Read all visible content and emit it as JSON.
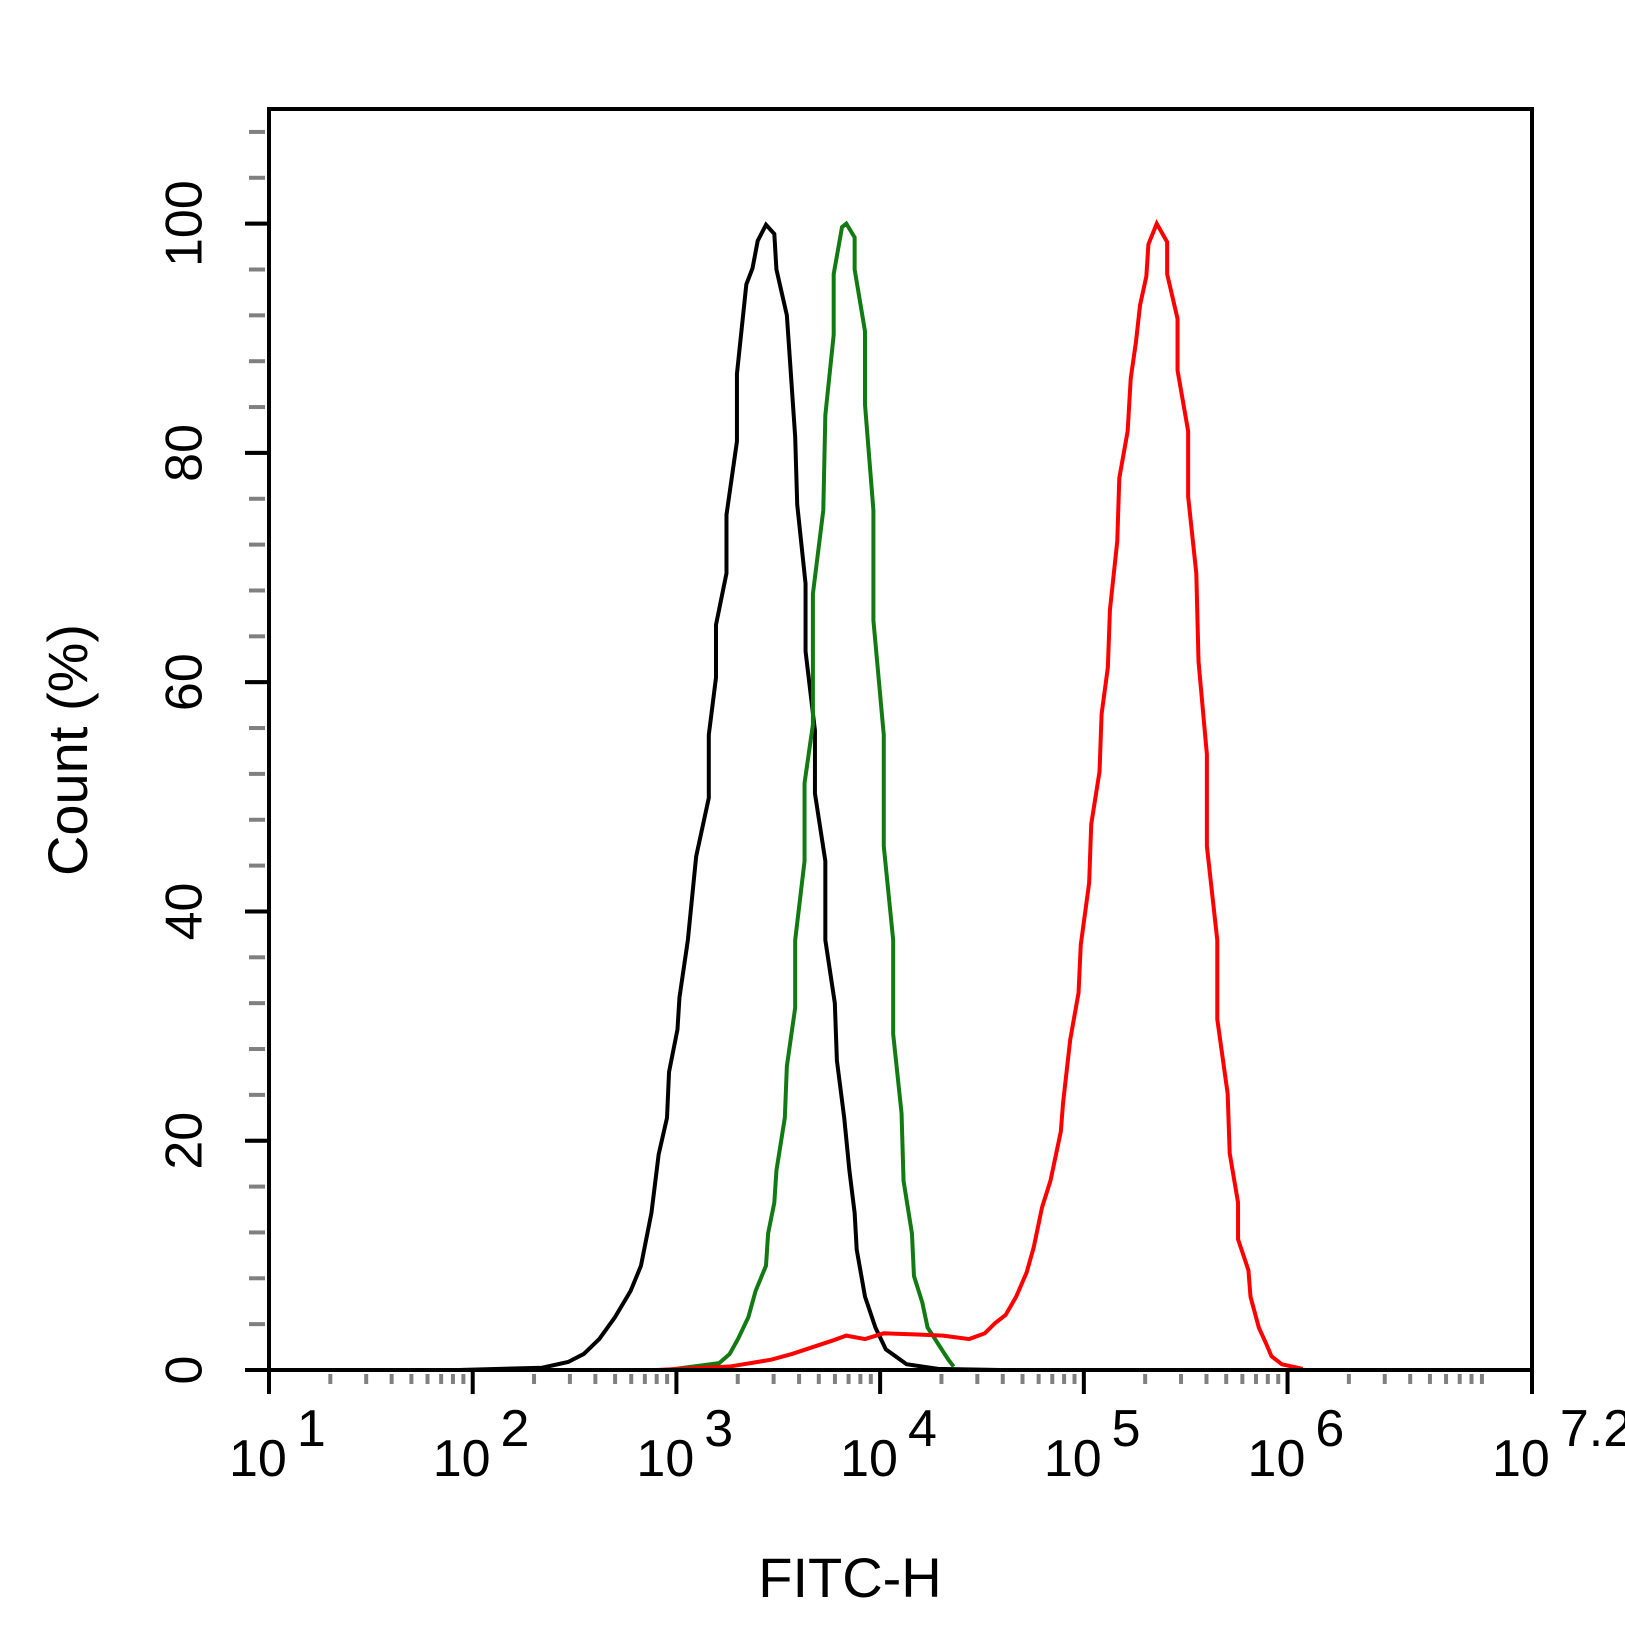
{
  "chart_data": {
    "type": "line",
    "x_label": "FITC-H",
    "y_label": "Count (%)",
    "xscale": "log",
    "xlim": [
      10,
      15848931.9
    ],
    "xticks": [
      {
        "value": 10,
        "label": "10",
        "power": "1"
      },
      {
        "value": 100,
        "label": "10",
        "power": "2"
      },
      {
        "value": 1000,
        "label": "10",
        "power": "3"
      },
      {
        "value": 10000,
        "label": "10",
        "power": "4"
      },
      {
        "value": 100000,
        "label": "10",
        "power": "5"
      },
      {
        "value": 1000000,
        "label": "10",
        "power": "6"
      },
      {
        "value": 15848931.9,
        "label": "10",
        "power": "7.2"
      }
    ],
    "ylim": [
      0,
      110
    ],
    "yticks": [
      0,
      20,
      40,
      60,
      80,
      100
    ],
    "series": [
      {
        "color": "#000000",
        "x": [
          85.3,
          219,
          294,
          351,
          418,
          499,
          596,
          670,
          754,
          818,
          899,
          920,
          1012,
          1035,
          1138,
          1250,
          1442,
          1442,
          1564,
          1564,
          1761,
          1761,
          1982,
          1982,
          2204,
          2363,
          2506,
          2753,
          3024,
          3097,
          3485,
          3828,
          3917,
          4304,
          4304,
          4786,
          4786,
          5383,
          5383,
          5993,
          6134,
          6664,
          7066,
          7497,
          7674,
          8429,
          9484,
          10670,
          13490,
          19230,
          38990
        ],
        "values": [
          0,
          0.2,
          0.7,
          1.4,
          2.7,
          4.6,
          6.9,
          9.1,
          13.7,
          18.8,
          22,
          26,
          29.7,
          32.5,
          37.5,
          44.8,
          49.9,
          55.4,
          60.4,
          65,
          69.5,
          74.6,
          81,
          86.9,
          94.7,
          96.1,
          98.5,
          99.9,
          99.1,
          96,
          92,
          81.4,
          75.5,
          68.6,
          62.7,
          55.8,
          50.3,
          44.4,
          37.5,
          32,
          27,
          22,
          17.4,
          13.7,
          10.5,
          6.4,
          3.7,
          1.8,
          0.5,
          0.1,
          0
        ]
      },
      {
        "color": "#127a12",
        "x": [
          899,
          1622,
          1825,
          2005,
          2254,
          2448,
          2753,
          2818,
          3024,
          3097,
          3405,
          3485,
          3828,
          3828,
          4256,
          4256,
          4677,
          4677,
          5260,
          5383,
          5916,
          5916,
          6501,
          6823,
          7497,
          7497,
          8429,
          8429,
          9268,
          9268,
          10420,
          10420,
          11590,
          11590,
          12740,
          13030,
          14330,
          14660,
          16100,
          17100,
          19230,
          21630,
          22960
        ],
        "values": [
          0,
          0.6,
          1.4,
          2.7,
          4.6,
          6.9,
          9.1,
          11.9,
          14.6,
          17.4,
          22,
          26.5,
          31.6,
          37.5,
          44.4,
          51.2,
          56.3,
          67.7,
          75,
          83.3,
          90.3,
          95.6,
          99.7,
          100,
          98.8,
          96,
          90.6,
          84.2,
          75,
          65.4,
          55.4,
          45.7,
          37.5,
          29.3,
          22.4,
          16.5,
          11.9,
          8.2,
          5.9,
          3.7,
          2.3,
          0.9,
          0.3
        ]
      },
      {
        "color": "#ff0000",
        "x": [
          800,
          1825,
          2919,
          3698,
          4677,
          5916,
          6823,
          8429,
          10420,
          15210,
          20380,
          27350,
          32650,
          36730,
          41310,
          46550,
          52360,
          56750,
          62370,
          68550,
          77090,
          79070,
          85700,
          94190,
          96600,
          106200,
          108700,
          119400,
          122200,
          131200,
          134300,
          145900,
          149300,
          164100,
          169900,
          180300,
          188800,
          202700,
          207500,
          228000,
          256400,
          256400,
          288400,
          288400,
          325100,
          325100,
          356500,
          365600,
          401800,
          401800,
          451900,
          451900,
          508200,
          520000,
          571500,
          571500,
          642700,
          657700,
          722800,
          785200,
          833700,
          937600,
          1186000
        ],
        "values": [
          0,
          0.3,
          0.9,
          1.4,
          2,
          2.6,
          3,
          2.7,
          3.2,
          3.1,
          3,
          2.7,
          3.2,
          4.1,
          4.8,
          6.4,
          8.5,
          10.7,
          14.2,
          16.5,
          20.8,
          23.3,
          28.8,
          32.9,
          37.1,
          42.5,
          47.6,
          52.2,
          57.2,
          61.3,
          66.3,
          72.3,
          77.8,
          81.9,
          86.5,
          89.7,
          92.9,
          95.4,
          98.2,
          100,
          98.4,
          95.6,
          91.7,
          87.2,
          81.9,
          76.2,
          69.5,
          61.8,
          53.7,
          45.7,
          37.5,
          30.6,
          24.1,
          18.9,
          14.6,
          11.4,
          8.7,
          6.4,
          3.7,
          2.3,
          1.2,
          0.5,
          0.1
        ]
      }
    ]
  }
}
